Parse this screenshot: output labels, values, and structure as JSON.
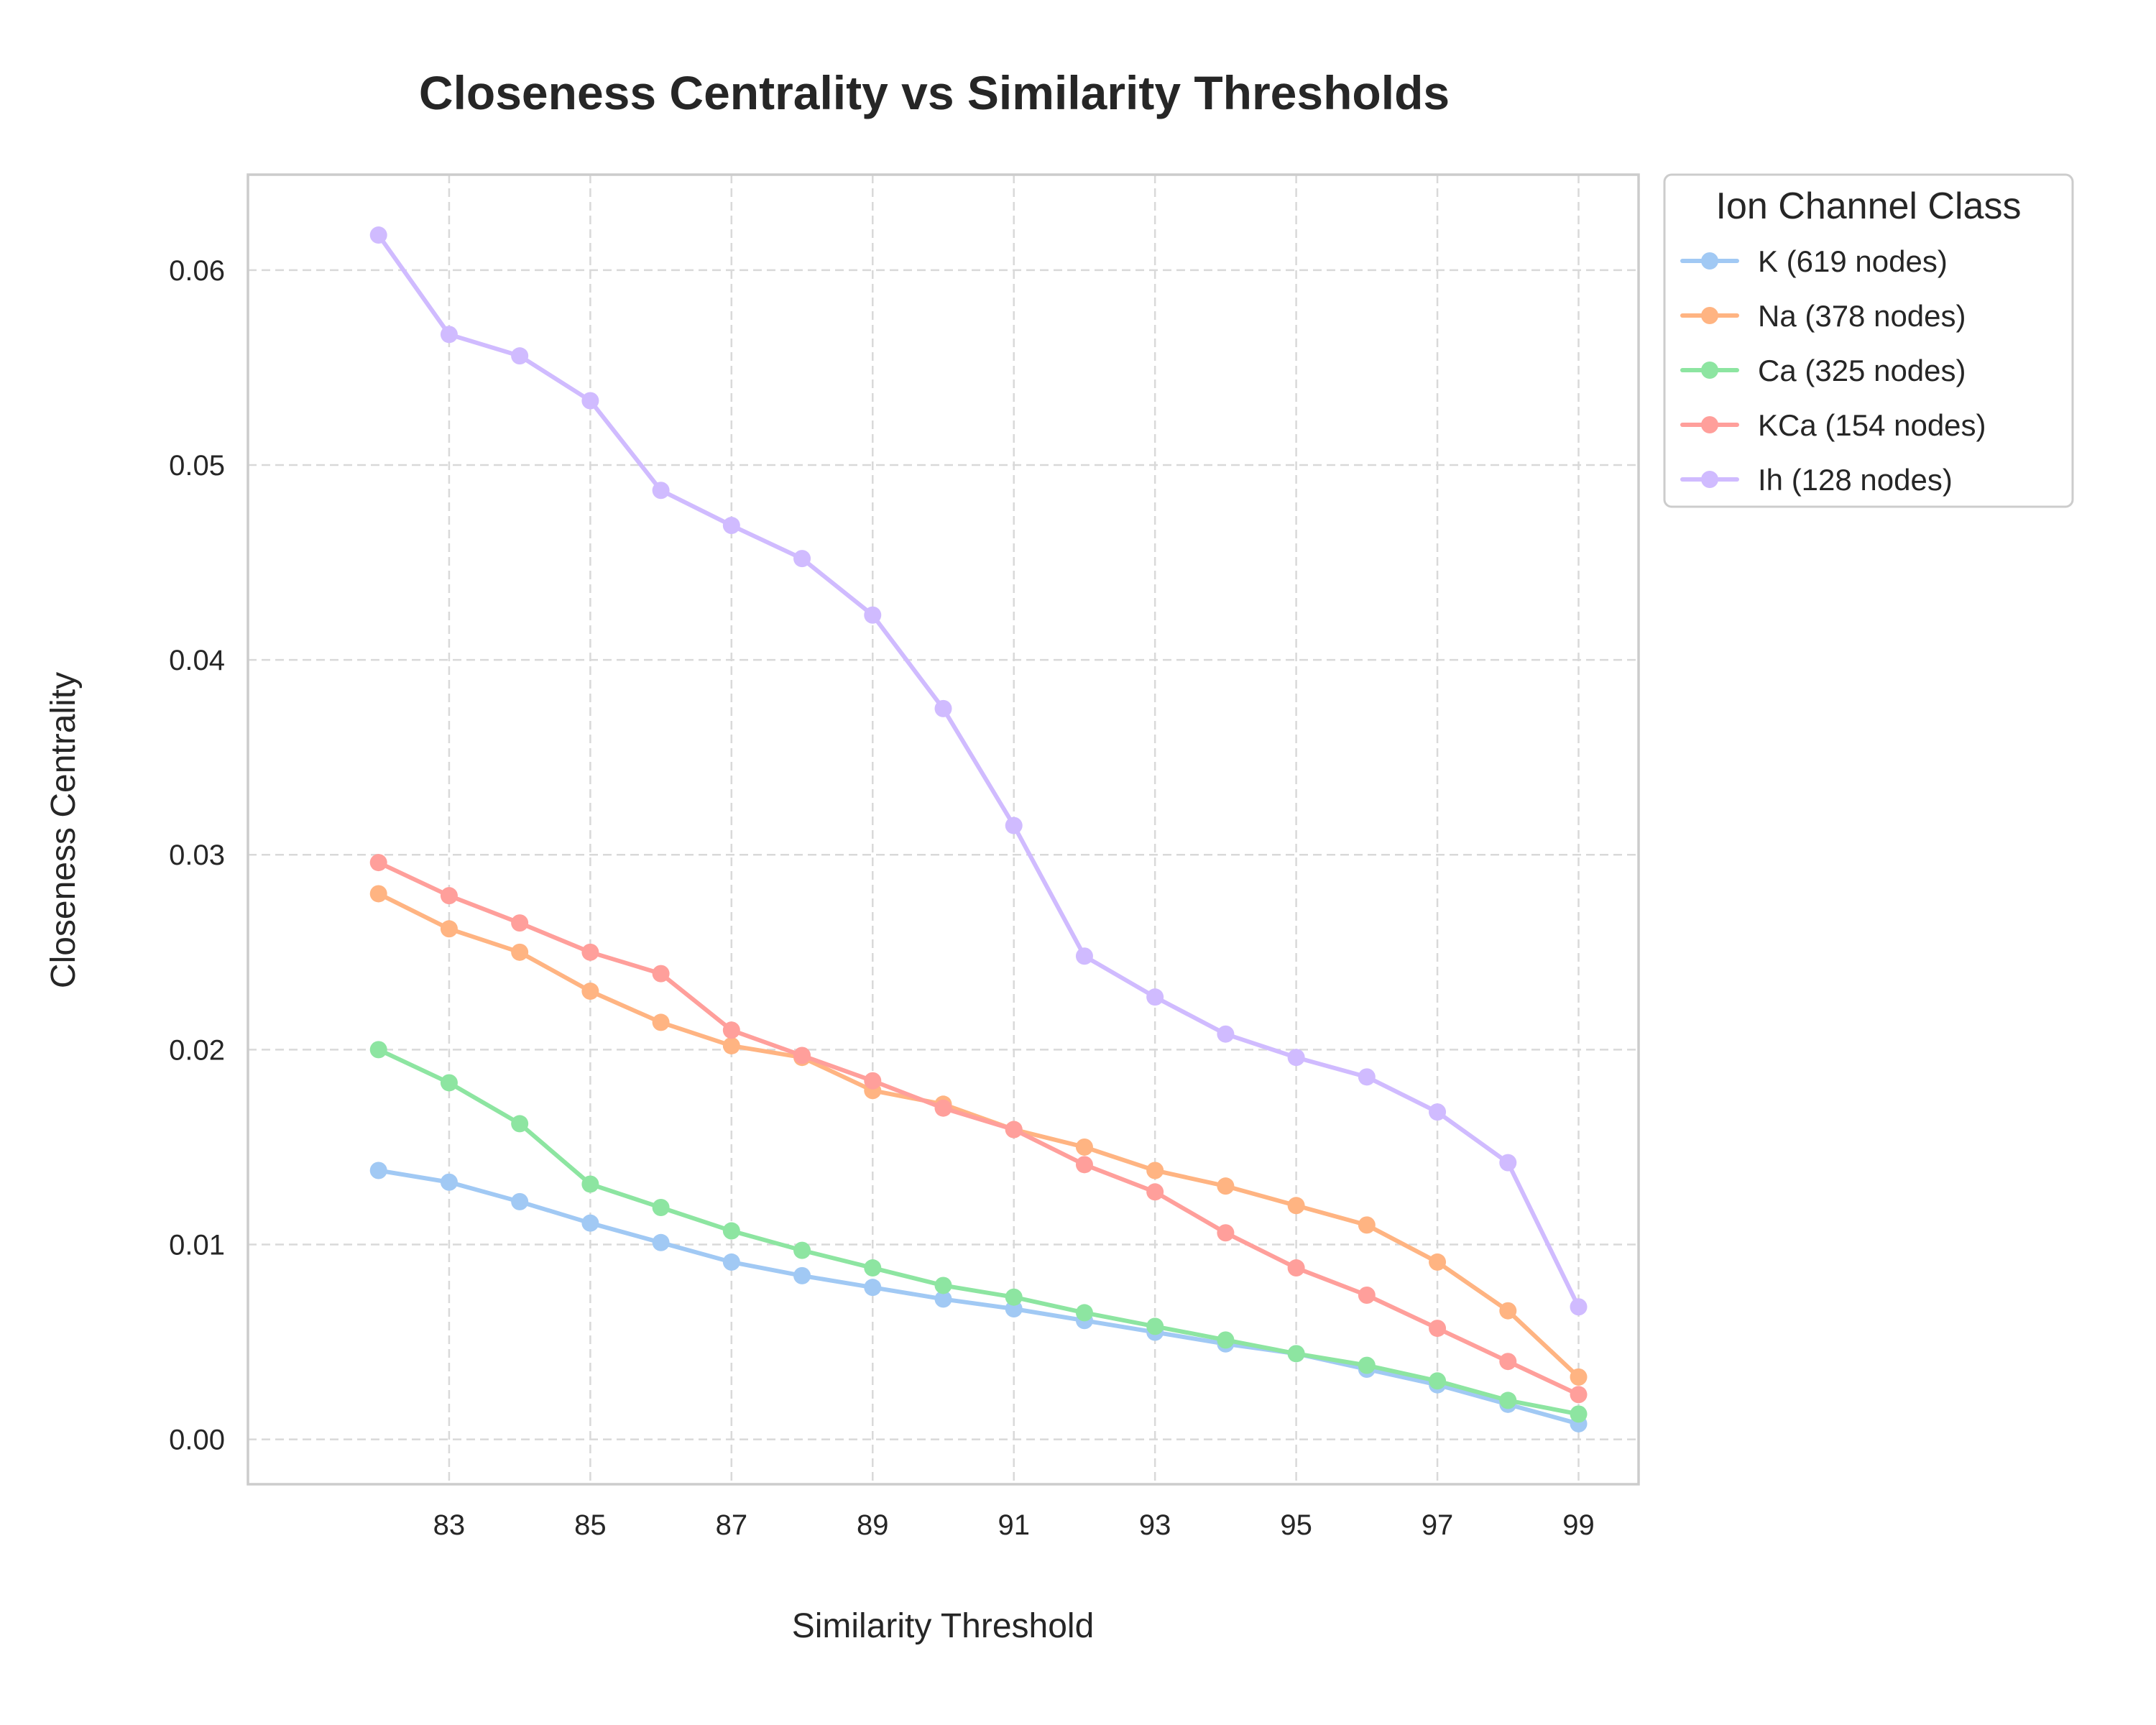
{
  "chart_data": {
    "type": "line",
    "title": "Closeness Centrality vs Similarity Thresholds",
    "xlabel": "Similarity Threshold",
    "ylabel": "Closeness Centrality",
    "x": [
      82,
      83,
      84,
      85,
      86,
      87,
      88,
      89,
      90,
      91,
      92,
      93,
      94,
      95,
      96,
      97,
      98,
      99
    ],
    "xlim": [
      80.15,
      99.85
    ],
    "ylim": [
      -0.0023,
      0.0649
    ],
    "xticks": [
      83,
      85,
      87,
      89,
      91,
      93,
      95,
      97,
      99
    ],
    "yticks": [
      0.0,
      0.01,
      0.02,
      0.03,
      0.04,
      0.05,
      0.06
    ],
    "ytick_labels": [
      "0.00",
      "0.01",
      "0.02",
      "0.03",
      "0.04",
      "0.05",
      "0.06"
    ],
    "grid": true,
    "legend": {
      "title": "Ion Channel Class",
      "placement": "outside-right-top"
    },
    "series": [
      {
        "name": "K (619 nodes)",
        "color": "#a1c9f4",
        "values": [
          0.0138,
          0.0132,
          0.0122,
          0.0111,
          0.0101,
          0.0091,
          0.0084,
          0.0078,
          0.0072,
          0.0067,
          0.0061,
          0.0055,
          0.0049,
          0.0044,
          0.0036,
          0.0028,
          0.0018,
          0.0008
        ]
      },
      {
        "name": "Na (378 nodes)",
        "color": "#ffb482",
        "values": [
          0.028,
          0.0262,
          0.025,
          0.023,
          0.0214,
          0.0202,
          0.0196,
          0.0179,
          0.0172,
          0.0159,
          0.015,
          0.0138,
          0.013,
          0.012,
          0.011,
          0.0091,
          0.0066,
          0.0032
        ]
      },
      {
        "name": "Ca (325 nodes)",
        "color": "#8de5a1",
        "values": [
          0.02,
          0.0183,
          0.0162,
          0.0131,
          0.0119,
          0.0107,
          0.0097,
          0.0088,
          0.0079,
          0.0073,
          0.0065,
          0.0058,
          0.0051,
          0.0044,
          0.0038,
          0.003,
          0.002,
          0.0013
        ]
      },
      {
        "name": "KCa (154 nodes)",
        "color": "#ff9f9b",
        "values": [
          0.0296,
          0.0279,
          0.0265,
          0.025,
          0.0239,
          0.021,
          0.0197,
          0.0184,
          0.017,
          0.0159,
          0.0141,
          0.0127,
          0.0106,
          0.0088,
          0.0074,
          0.0057,
          0.004,
          0.0023
        ]
      },
      {
        "name": "Ih (128 nodes)",
        "color": "#d0bbff",
        "values": [
          0.0618,
          0.0567,
          0.0556,
          0.0533,
          0.0487,
          0.0469,
          0.0452,
          0.0423,
          0.0375,
          0.0315,
          0.0248,
          0.0227,
          0.0208,
          0.0196,
          0.0186,
          0.0168,
          0.0142,
          0.0068
        ]
      }
    ]
  }
}
